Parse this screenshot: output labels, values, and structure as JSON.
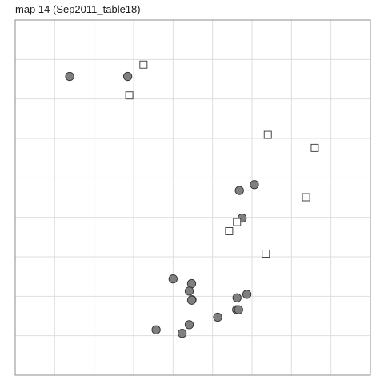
{
  "chart_data": {
    "type": "scatter",
    "title": "map 14 (Sep2011_table18)",
    "xlabel": "",
    "ylabel": "",
    "grid": true,
    "legend": "none",
    "xlim": [
      0,
      9
    ],
    "ylim": [
      0,
      9
    ],
    "gridlines": [
      1,
      2,
      3,
      4,
      5,
      6,
      7,
      8
    ],
    "series": [
      {
        "marker": "circle",
        "fill": "#7f7f7f",
        "stroke": "#333333",
        "points": [
          [
            1.38,
            7.57
          ],
          [
            2.85,
            7.57
          ],
          [
            5.68,
            4.68
          ],
          [
            6.06,
            4.83
          ],
          [
            5.75,
            3.98
          ],
          [
            4.0,
            2.44
          ],
          [
            4.47,
            2.32
          ],
          [
            4.41,
            2.13
          ],
          [
            4.48,
            1.91
          ],
          [
            4.47,
            1.9
          ],
          [
            5.62,
            1.96
          ],
          [
            5.87,
            2.05
          ],
          [
            5.61,
            1.66
          ],
          [
            5.66,
            1.66
          ],
          [
            5.13,
            1.47
          ],
          [
            4.41,
            1.28
          ],
          [
            3.57,
            1.15
          ],
          [
            4.23,
            1.06
          ]
        ]
      },
      {
        "marker": "square",
        "fill": "#ffffff",
        "stroke": "#333333",
        "points": [
          [
            3.25,
            7.87
          ],
          [
            2.89,
            7.09
          ],
          [
            6.4,
            6.09
          ],
          [
            7.59,
            5.76
          ],
          [
            7.37,
            4.51
          ],
          [
            5.62,
            3.88
          ],
          [
            5.42,
            3.65
          ],
          [
            6.35,
            3.08
          ]
        ]
      }
    ]
  }
}
